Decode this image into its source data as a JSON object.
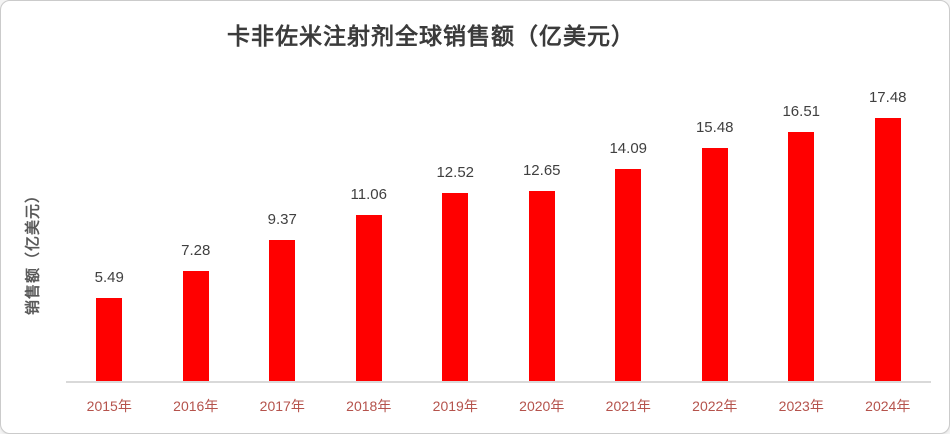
{
  "card": {
    "background": "#ffffff",
    "border_color": "#cbcbcb"
  },
  "chart_data": {
    "type": "bar",
    "title": "卡非佐米注射剂全球销售额（亿美元）",
    "ylabel": "销售额（亿美元）",
    "xlabel": "",
    "categories": [
      "2015年",
      "2016年",
      "2017年",
      "2018年",
      "2019年",
      "2020年",
      "2021年",
      "2022年",
      "2023年",
      "2024年"
    ],
    "values": [
      5.49,
      7.28,
      9.37,
      11.06,
      12.52,
      12.65,
      14.09,
      15.48,
      16.51,
      17.48
    ],
    "ylim": [
      0,
      18
    ],
    "grid": false,
    "legend": "none",
    "data_labels": true,
    "bar_color": "#ff0000",
    "value_label_color": "#404040",
    "category_label_color": "#b5534c",
    "axis_line_color": "#d9d9d9",
    "title_color": "#3b3b3b",
    "ylabel_color": "#595959"
  }
}
